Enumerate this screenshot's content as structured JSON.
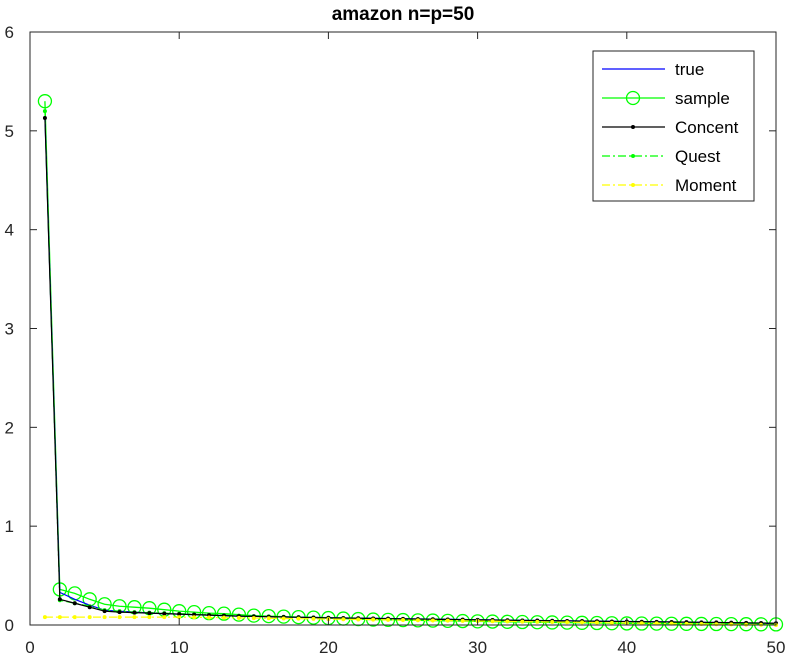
{
  "chart_data": {
    "type": "line",
    "title": "amazon n=p=50",
    "xlabel": "",
    "ylabel": "",
    "xlim": [
      0,
      50
    ],
    "ylim": [
      0,
      6
    ],
    "xticks": [
      0,
      10,
      20,
      30,
      40,
      50
    ],
    "yticks": [
      0,
      1,
      2,
      3,
      4,
      5,
      6
    ],
    "grid": false,
    "legend_position": "top-right",
    "x": [
      1,
      2,
      3,
      4,
      5,
      6,
      7,
      8,
      9,
      10,
      11,
      12,
      13,
      14,
      15,
      16,
      17,
      18,
      19,
      20,
      21,
      22,
      23,
      24,
      25,
      26,
      27,
      28,
      29,
      30,
      31,
      32,
      33,
      34,
      35,
      36,
      37,
      38,
      39,
      40,
      41,
      42,
      43,
      44,
      45,
      46,
      47,
      48,
      49,
      50
    ],
    "series": [
      {
        "name": "true",
        "color": "#0000ff",
        "style": "solid",
        "marker": "none",
        "values": [
          5.15,
          0.33,
          0.26,
          0.2,
          0.15,
          0.14,
          0.13,
          0.12,
          0.115,
          0.11,
          0.105,
          0.1,
          0.095,
          0.09,
          0.088,
          0.085,
          0.082,
          0.08,
          0.077,
          0.075,
          0.072,
          0.07,
          0.068,
          0.066,
          0.064,
          0.062,
          0.06,
          0.058,
          0.056,
          0.054,
          0.052,
          0.05,
          0.048,
          0.046,
          0.044,
          0.043,
          0.041,
          0.04,
          0.038,
          0.036,
          0.035,
          0.033,
          0.031,
          0.029,
          0.027,
          0.025,
          0.023,
          0.021,
          0.018,
          0.015
        ]
      },
      {
        "name": "sample",
        "color": "#00ff00",
        "style": "solid",
        "marker": "circle",
        "values": [
          5.3,
          0.36,
          0.32,
          0.26,
          0.21,
          0.19,
          0.18,
          0.17,
          0.155,
          0.14,
          0.13,
          0.12,
          0.115,
          0.105,
          0.095,
          0.09,
          0.085,
          0.08,
          0.075,
          0.07,
          0.065,
          0.06,
          0.055,
          0.052,
          0.05,
          0.047,
          0.045,
          0.042,
          0.04,
          0.037,
          0.035,
          0.032,
          0.03,
          0.028,
          0.026,
          0.024,
          0.022,
          0.02,
          0.018,
          0.016,
          0.015,
          0.014,
          0.013,
          0.012,
          0.011,
          0.01,
          0.009,
          0.008,
          0.007,
          0.006
        ]
      },
      {
        "name": "Concent",
        "color": "#000000",
        "style": "solid",
        "marker": "dot",
        "values": [
          5.13,
          0.26,
          0.22,
          0.18,
          0.14,
          0.13,
          0.125,
          0.12,
          0.115,
          0.11,
          0.105,
          0.1,
          0.095,
          0.09,
          0.087,
          0.084,
          0.081,
          0.078,
          0.075,
          0.072,
          0.07,
          0.068,
          0.066,
          0.064,
          0.062,
          0.06,
          0.058,
          0.056,
          0.054,
          0.052,
          0.05,
          0.048,
          0.046,
          0.045,
          0.043,
          0.041,
          0.04,
          0.038,
          0.036,
          0.035,
          0.033,
          0.032,
          0.03,
          0.029,
          0.027,
          0.026,
          0.024,
          0.022,
          0.02,
          0.018
        ]
      },
      {
        "name": "Quest",
        "color": "#00ff00",
        "style": "dashdot",
        "marker": "dot",
        "values": [
          5.2,
          0.25,
          0.22,
          0.19,
          0.15,
          0.14,
          0.13,
          0.125,
          0.12,
          0.115,
          0.11,
          0.105,
          0.1,
          0.095,
          0.09,
          0.087,
          0.083,
          0.08,
          0.077,
          0.074,
          0.071,
          0.068,
          0.066,
          0.063,
          0.061,
          0.059,
          0.057,
          0.055,
          0.053,
          0.051,
          0.049,
          0.047,
          0.045,
          0.043,
          0.041,
          0.039,
          0.037,
          0.035,
          0.033,
          0.031,
          0.03,
          0.028,
          0.026,
          0.024,
          0.022,
          0.02,
          0.018,
          0.016,
          0.014,
          0.012
        ]
      },
      {
        "name": "Moment",
        "color": "#ffff00",
        "style": "dashdot",
        "marker": "dot",
        "values": [
          0.08,
          0.08,
          0.08,
          0.08,
          0.08,
          0.08,
          0.08,
          0.08,
          0.08,
          0.08,
          0.078,
          0.076,
          0.074,
          0.072,
          0.07,
          0.068,
          0.066,
          0.064,
          0.062,
          0.06,
          0.058,
          0.056,
          0.054,
          0.052,
          0.05,
          0.048,
          0.046,
          0.044,
          0.042,
          0.04,
          0.038,
          0.036,
          0.034,
          0.032,
          0.03,
          0.028,
          0.026,
          0.024,
          0.022,
          0.02,
          0.018,
          0.016,
          0.014,
          0.012,
          0.01,
          0.008,
          0.006,
          0.004,
          0.002,
          0.0
        ]
      }
    ]
  }
}
